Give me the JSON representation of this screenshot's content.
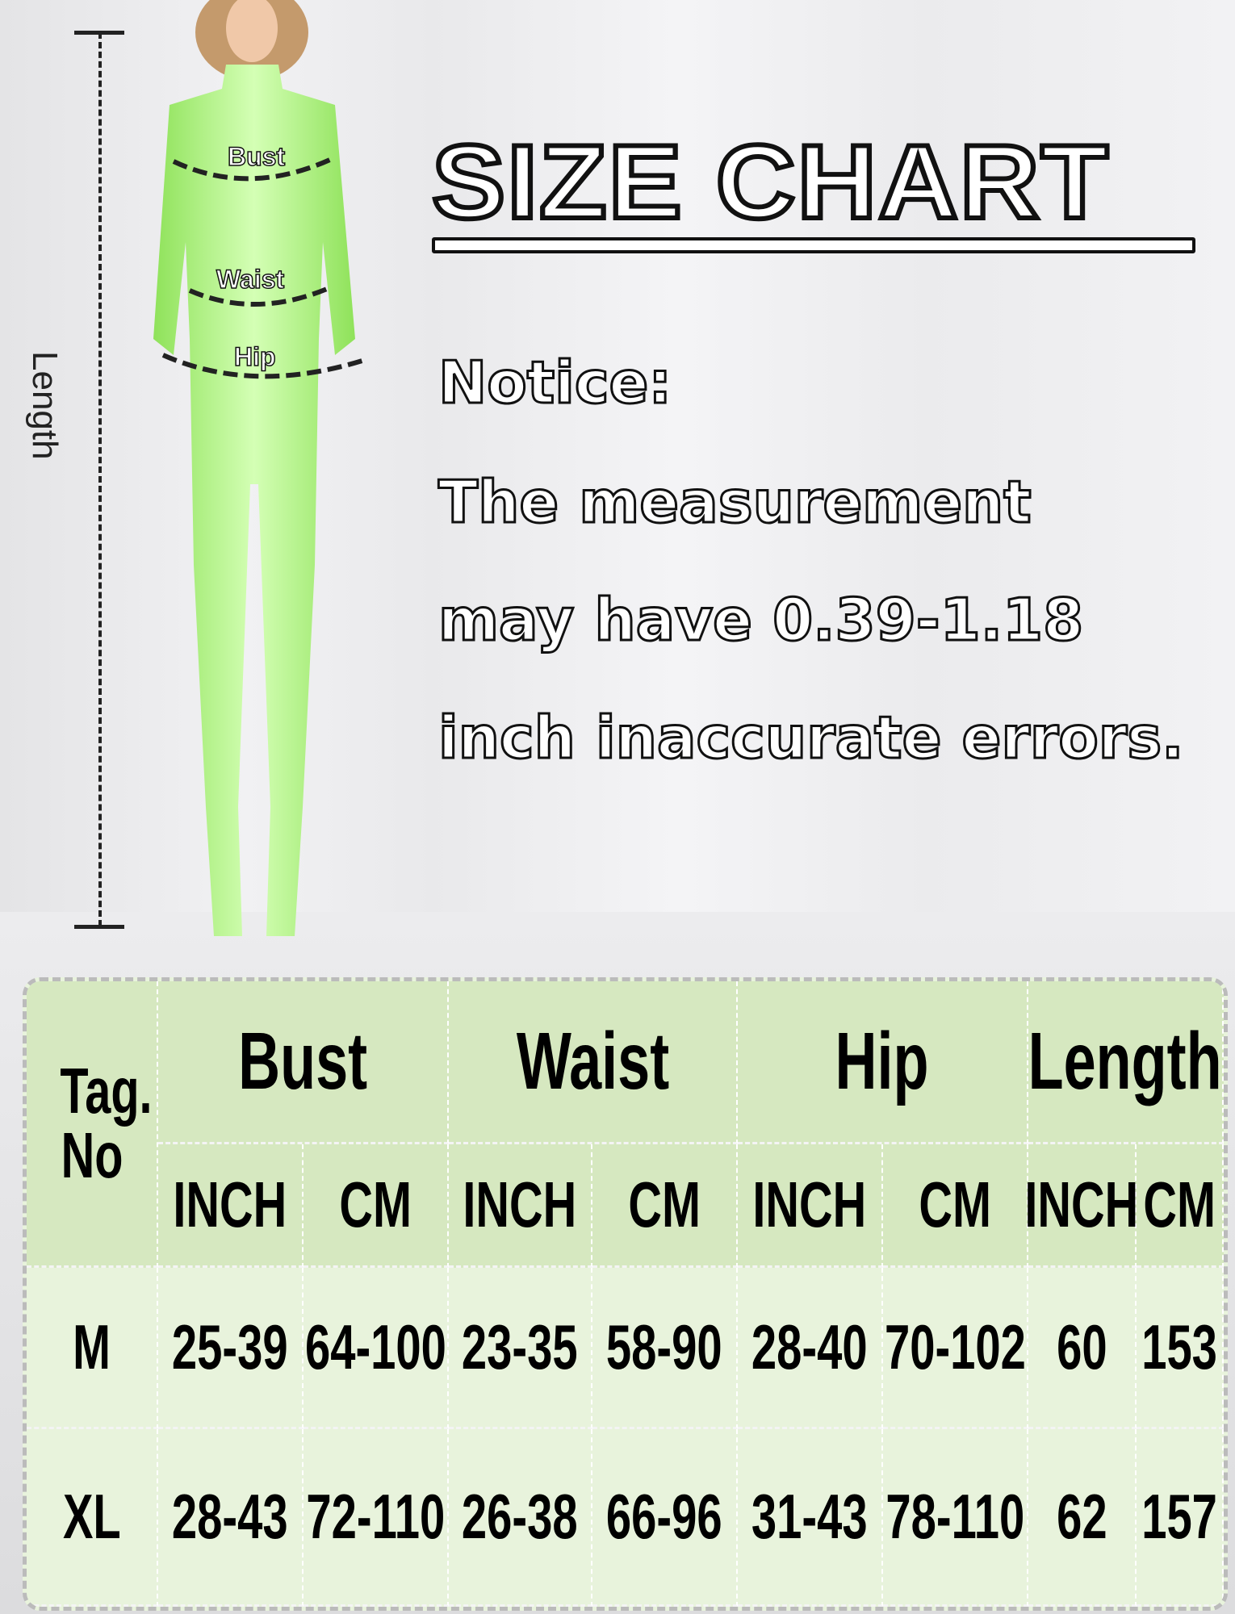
{
  "title": "SIZE CHART",
  "notice": {
    "heading": "Notice:",
    "lines": [
      "The measurement",
      "may have 0.39-1.18",
      "inch inaccurate errors."
    ]
  },
  "figure": {
    "labels": {
      "bust": "Bust",
      "waist": "Waist",
      "hip": "Hip",
      "length": "Length"
    },
    "garment_color": "#a8f07a"
  },
  "table": {
    "tag_header": "Tag. No",
    "groups": [
      "Bust",
      "Waist",
      "Hip",
      "Length"
    ],
    "units": [
      "INCH",
      "CM",
      "INCH",
      "CM",
      "INCH",
      "CM",
      "INCH",
      "CM"
    ],
    "rows": [
      {
        "tag": "M",
        "values": [
          "25-39",
          "64-100",
          "23-35",
          "58-90",
          "28-40",
          "70-102",
          "60",
          "153"
        ]
      },
      {
        "tag": "XL",
        "values": [
          "28-43",
          "72-110",
          "26-38",
          "66-96",
          "31-43",
          "78-110",
          "62",
          "157"
        ]
      }
    ],
    "header_color": "#d6e8c0",
    "body_color": "#e8f3dc"
  }
}
